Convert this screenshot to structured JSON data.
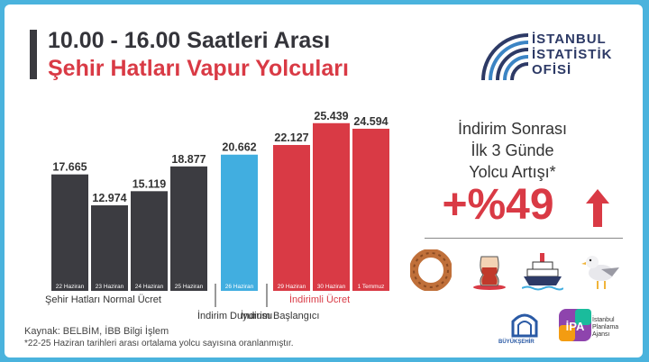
{
  "header": {
    "title_line1": "10.00 - 16.00 Saatleri Arası",
    "title_line2": "Şehir Hatları Vapur Yolcuları"
  },
  "logo": {
    "lines": [
      "İSTANBUL",
      "İSTATİSTİK",
      "OFİSİ"
    ]
  },
  "chart_data": {
    "type": "bar",
    "title": "",
    "categories": [
      "22 Haziran",
      "23 Haziran",
      "24 Haziran",
      "25 Haziran",
      "26 Haziran",
      "29 Haziran",
      "30 Haziran",
      "1 Temmuz"
    ],
    "value_labels": [
      "17.665",
      "12.974",
      "15.119",
      "18.877",
      "20.662",
      "22.127",
      "25.439",
      "24.594"
    ],
    "values": [
      17665,
      12974,
      15119,
      18877,
      20662,
      22127,
      25439,
      24594
    ],
    "group": [
      "normal",
      "normal",
      "normal",
      "normal",
      "announce",
      "discount",
      "discount",
      "discount"
    ],
    "colors": {
      "normal": "#3c3c41",
      "announce": "#41aee0",
      "discount": "#d93a45"
    },
    "ylim": [
      0,
      26500
    ],
    "group_labels": {
      "normal": "Şehir Hatları Normal Ücret",
      "announce": "İndirim Duyurusu",
      "start": "İndirim Başlangıcı",
      "discount": "İndirimli Ücret"
    }
  },
  "side": {
    "heading_lines": [
      "İndirim Sonrası",
      "İlk 3 Günde",
      "Yolcu Artışı*"
    ],
    "increase": "+%49"
  },
  "icons": [
    "simit-icon",
    "tea-glass-icon",
    "ferry-icon",
    "seagull-icon"
  ],
  "footer": {
    "source": "Kaynak: BELBİM, İBB Bilgi İşlem",
    "note": "*22-25 Haziran tarihleri arası ortalama yolcu sayısına oranlanmıştır.",
    "ibb_text": "BÜYÜKŞEHİR",
    "ipa_name": "İPA",
    "ipa_text_lines": [
      "İstanbul",
      "Planlama",
      "Ajansı"
    ]
  }
}
